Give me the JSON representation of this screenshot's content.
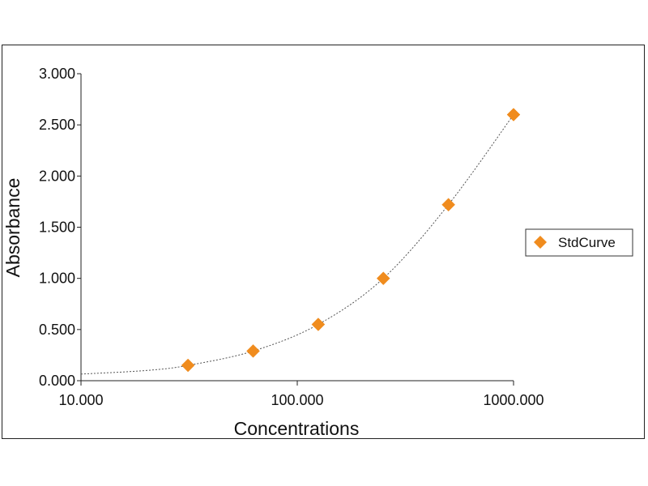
{
  "chart_data": {
    "type": "scatter",
    "xlabel": "Concentrations",
    "ylabel": "Absorbance",
    "x_scale": "log",
    "xlim": [
      10,
      1000
    ],
    "ylim": [
      0,
      3
    ],
    "x_ticks": [
      10,
      100,
      1000
    ],
    "x_tick_labels": [
      "10.000",
      "100.000",
      "1000.000"
    ],
    "y_ticks": [
      0,
      0.5,
      1,
      1.5,
      2,
      2.5,
      3
    ],
    "y_tick_labels": [
      "0.000",
      "0.500",
      "1.000",
      "1.500",
      "2.000",
      "2.500",
      "3.000"
    ],
    "grid": false,
    "legend_position": "right",
    "series": [
      {
        "name": "StdCurve",
        "color": "#f08c1e",
        "marker": "diamond",
        "x": [
          31.25,
          62.5,
          125,
          250,
          500,
          1000
        ],
        "y": [
          0.15,
          0.29,
          0.55,
          1.0,
          1.72,
          2.6
        ],
        "trendline": {
          "style": "dotted",
          "color": "#555555",
          "x": [
            10,
            20,
            31.25,
            62.5,
            125,
            250,
            500,
            1000
          ],
          "y": [
            0.065,
            0.1,
            0.15,
            0.29,
            0.55,
            1.0,
            1.72,
            2.6
          ]
        }
      }
    ]
  }
}
